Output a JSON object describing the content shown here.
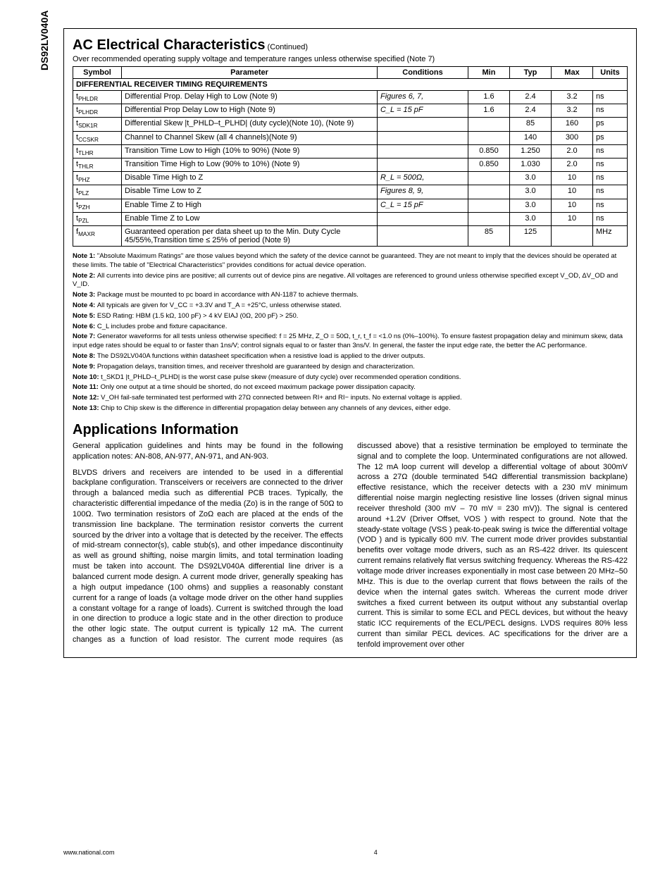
{
  "part_number": "DS92LV040A",
  "section_title": "AC Electrical Characteristics",
  "continued": "(Continued)",
  "subtitle": "Over recommended operating supply voltage and temperature ranges unless otherwise specified (Note 7)",
  "headers": {
    "symbol": "Symbol",
    "parameter": "Parameter",
    "conditions": "Conditions",
    "min": "Min",
    "typ": "Typ",
    "max": "Max",
    "units": "Units"
  },
  "section_row": "DIFFERENTIAL RECEIVER TIMING REQUIREMENTS",
  "rows": [
    {
      "sym": "t_PHLDR",
      "param": "Differential Prop. Delay High to Low (Note 9)",
      "cond": "Figures 6, 7,",
      "min": "1.6",
      "typ": "2.4",
      "max": "3.2",
      "units": "ns"
    },
    {
      "sym": "t_PLHDR",
      "param": "Differential Prop Delay Low to High (Note 9)",
      "cond": "C_L = 15 pF",
      "min": "1.6",
      "typ": "2.4",
      "max": "3.2",
      "units": "ns"
    },
    {
      "sym": "t_SDK1R",
      "param": "Differential Skew |t_PHLD–t_PLHD| (duty cycle)(Note 10), (Note 9)",
      "cond": "",
      "min": "",
      "typ": "85",
      "max": "160",
      "units": "ps"
    },
    {
      "sym": "t_CCSKR",
      "param": "Channel to Channel Skew (all 4 channels)(Note 9)",
      "cond": "",
      "min": "",
      "typ": "140",
      "max": "300",
      "units": "ps"
    },
    {
      "sym": "t_TLHR",
      "param": "Transition Time Low to High (10% to 90%) (Note 9)",
      "cond": "",
      "min": "0.850",
      "typ": "1.250",
      "max": "2.0",
      "units": "ns"
    },
    {
      "sym": "t_THLR",
      "param": "Transition Time High to Low (90% to 10%) (Note 9)",
      "cond": "",
      "min": "0.850",
      "typ": "1.030",
      "max": "2.0",
      "units": "ns"
    },
    {
      "sym": "t_PHZ",
      "param": "Disable Time High to Z",
      "cond": "R_L = 500Ω,",
      "min": "",
      "typ": "3.0",
      "max": "10",
      "units": "ns"
    },
    {
      "sym": "t_PLZ",
      "param": "Disable Time Low to Z",
      "cond": "Figures 8, 9,",
      "min": "",
      "typ": "3.0",
      "max": "10",
      "units": "ns"
    },
    {
      "sym": "t_PZH",
      "param": "Enable Time Z to High",
      "cond": "C_L = 15 pF",
      "min": "",
      "typ": "3.0",
      "max": "10",
      "units": "ns"
    },
    {
      "sym": "t_PZL",
      "param": "Enable Time Z to Low",
      "cond": "",
      "min": "",
      "typ": "3.0",
      "max": "10",
      "units": "ns"
    },
    {
      "sym": "f_MAXR",
      "param": "Guaranteed operation per data sheet up to the Min. Duty Cycle 45/55%,Transition time ≤ 25% of period (Note 9)",
      "cond": "",
      "min": "85",
      "typ": "125",
      "max": "",
      "units": "MHz"
    }
  ],
  "notes": [
    {
      "label": "Note 1:",
      "text": "\"Absolute Maximum Ratings\" are those values beyond which the safety of the device cannot be guaranteed. They are not meant to imply that the devices should be operated at these limits. The table of \"Electrical Characteristics\" provides conditions for actual device operation."
    },
    {
      "label": "Note 2:",
      "text": "All currents into device pins are positive; all currents out of device pins are negative. All voltages are referenced to ground unless otherwise specified except V_OD, ΔV_OD and V_ID."
    },
    {
      "label": "Note 3:",
      "text": "Package must be mounted to pc board in accordance with AN-1187 to achieve thermals."
    },
    {
      "label": "Note 4:",
      "text": "All typicals are given for V_CC = +3.3V and T_A = +25°C, unless otherwise stated."
    },
    {
      "label": "Note 5:",
      "text": "ESD Rating: HBM (1.5 kΩ, 100 pF) > 4 kV EIAJ (0Ω, 200 pF) > 250."
    },
    {
      "label": "Note 6:",
      "text": "C_L includes probe and fixture capacitance."
    },
    {
      "label": "Note 7:",
      "text": "Generator waveforms for all tests unless otherwise specified: f = 25 MHz, Z_O = 50Ω, t_r, t_f = <1.0 ns (0%–100%). To ensure fastest propagation delay and minimum skew, data input edge rates should be equal to or faster than 1ns/V; control signals equal to or faster than 3ns/V. In general, the faster the input edge rate, the better the AC performance."
    },
    {
      "label": "Note 8:",
      "text": "The DS92LV040A functions within datasheet specification when a resistive load is applied to the driver outputs."
    },
    {
      "label": "Note 9:",
      "text": "Propagation delays, transition times, and receiver threshold are guaranteed by design and characterization."
    },
    {
      "label": "Note 10:",
      "text": "t_SKD1 |t_PHLD–t_PLHD| is the worst case pulse skew (measure of duty cycle) over recommended operation conditions."
    },
    {
      "label": "Note 11:",
      "text": "Only one output at a time should be shorted, do not exceed maximum package power dissipation capacity."
    },
    {
      "label": "Note 12:",
      "text": "V_OH fail-safe terminated test performed with 27Ω connected between RI+ and RI− inputs. No external voltage is applied."
    },
    {
      "label": "Note 13:",
      "text": "Chip to Chip skew is the difference in differential propagation delay between any channels of any devices, either edge."
    }
  ],
  "app_title": "Applications Information",
  "app_body": "General application guidelines and hints may be found in the following application notes: AN-808, AN-977, AN-971, and AN-903.\n\nBLVDS drivers and receivers are intended to be used in a differential backplane configuration. Transceivers or receivers are connected to the driver through a balanced media such as differential PCB traces. Typically, the characteristic differential impedance of the media (Zo) is in the range of 50Ω to 100Ω. Two termination resistors of ZoΩ each are placed at the ends of the transmission line backplane. The termination resistor converts the current sourced by the driver into a voltage that is detected by the receiver. The effects of mid-stream connector(s), cable stub(s), and other impedance discontinuity as well as ground shifting, noise margin limits, and total termination loading must be taken into account. The DS92LV040A differential line driver is a balanced current mode design. A current mode driver, generally speaking has a high output impedance (100 ohms) and supplies a reasonably constant current for a range of loads (a voltage mode driver on the other hand supplies a constant voltage for a range of loads). Current is switched through the load in one direction to produce a logic state and in the other direction to produce the other logic state. The output current is typically 12 mA. The current changes as a function of load resistor. The current mode requires (as discussed above) that a resistive termination be employed to terminate the signal and to complete the loop. Unterminated configurations are not allowed. The 12 mA loop current will develop a differential voltage of about 300mV across a 27Ω (double terminated 54Ω differential transmission backplane) effective resistance, which the receiver detects with a 230 mV minimum differential noise margin neglecting resistive line losses (driven signal minus receiver threshold (300 mV – 70 mV = 230 mV)). The signal is centered around +1.2V (Driver Offset, VOS ) with respect to ground. Note that the steady-state voltage (VSS ) peak-to-peak swing is twice the differential voltage (VOD ) and is typically 600 mV. The current mode driver provides substantial benefits over voltage mode drivers, such as an RS-422 driver. Its quiescent current remains relatively flat versus switching frequency. Whereas the RS-422 voltage mode driver increases exponentially in most case between 20 MHz–50 MHz. This is due to the overlap current that flows between the rails of the device when the internal gates switch. Whereas the current mode driver switches a fixed current between its output without any substantial overlap current. This is similar to some ECL and PECL devices, but without the heavy static ICC requirements of the ECL/PECL designs. LVDS requires 80% less current than similar PECL devices. AC specifications for the driver are a tenfold improvement over other",
  "footer_left": "www.national.com",
  "footer_page": "4"
}
